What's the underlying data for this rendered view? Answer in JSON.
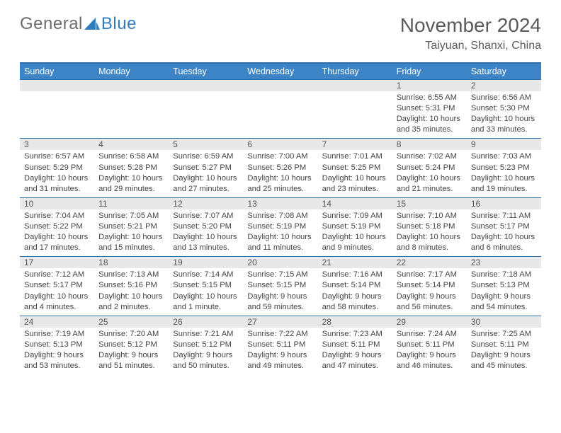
{
  "logo": {
    "text1": "General",
    "text2": "Blue"
  },
  "title": "November 2024",
  "location": "Taiyuan, Shanxi, China",
  "header_bg": "#3d84c6",
  "header_border": "#2f6ea8",
  "numbar_bg": "#e8e8e8",
  "text_color": "#444444",
  "font_size_header": 12.5,
  "font_size_cell": 11.2,
  "weekdays": [
    "Sunday",
    "Monday",
    "Tuesday",
    "Wednesday",
    "Thursday",
    "Friday",
    "Saturday"
  ],
  "weeks": [
    [
      null,
      null,
      null,
      null,
      null,
      {
        "n": "1",
        "sunrise": "Sunrise: 6:55 AM",
        "sunset": "Sunset: 5:31 PM",
        "daylight": "Daylight: 10 hours and 35 minutes."
      },
      {
        "n": "2",
        "sunrise": "Sunrise: 6:56 AM",
        "sunset": "Sunset: 5:30 PM",
        "daylight": "Daylight: 10 hours and 33 minutes."
      }
    ],
    [
      {
        "n": "3",
        "sunrise": "Sunrise: 6:57 AM",
        "sunset": "Sunset: 5:29 PM",
        "daylight": "Daylight: 10 hours and 31 minutes."
      },
      {
        "n": "4",
        "sunrise": "Sunrise: 6:58 AM",
        "sunset": "Sunset: 5:28 PM",
        "daylight": "Daylight: 10 hours and 29 minutes."
      },
      {
        "n": "5",
        "sunrise": "Sunrise: 6:59 AM",
        "sunset": "Sunset: 5:27 PM",
        "daylight": "Daylight: 10 hours and 27 minutes."
      },
      {
        "n": "6",
        "sunrise": "Sunrise: 7:00 AM",
        "sunset": "Sunset: 5:26 PM",
        "daylight": "Daylight: 10 hours and 25 minutes."
      },
      {
        "n": "7",
        "sunrise": "Sunrise: 7:01 AM",
        "sunset": "Sunset: 5:25 PM",
        "daylight": "Daylight: 10 hours and 23 minutes."
      },
      {
        "n": "8",
        "sunrise": "Sunrise: 7:02 AM",
        "sunset": "Sunset: 5:24 PM",
        "daylight": "Daylight: 10 hours and 21 minutes."
      },
      {
        "n": "9",
        "sunrise": "Sunrise: 7:03 AM",
        "sunset": "Sunset: 5:23 PM",
        "daylight": "Daylight: 10 hours and 19 minutes."
      }
    ],
    [
      {
        "n": "10",
        "sunrise": "Sunrise: 7:04 AM",
        "sunset": "Sunset: 5:22 PM",
        "daylight": "Daylight: 10 hours and 17 minutes."
      },
      {
        "n": "11",
        "sunrise": "Sunrise: 7:05 AM",
        "sunset": "Sunset: 5:21 PM",
        "daylight": "Daylight: 10 hours and 15 minutes."
      },
      {
        "n": "12",
        "sunrise": "Sunrise: 7:07 AM",
        "sunset": "Sunset: 5:20 PM",
        "daylight": "Daylight: 10 hours and 13 minutes."
      },
      {
        "n": "13",
        "sunrise": "Sunrise: 7:08 AM",
        "sunset": "Sunset: 5:19 PM",
        "daylight": "Daylight: 10 hours and 11 minutes."
      },
      {
        "n": "14",
        "sunrise": "Sunrise: 7:09 AM",
        "sunset": "Sunset: 5:19 PM",
        "daylight": "Daylight: 10 hours and 9 minutes."
      },
      {
        "n": "15",
        "sunrise": "Sunrise: 7:10 AM",
        "sunset": "Sunset: 5:18 PM",
        "daylight": "Daylight: 10 hours and 8 minutes."
      },
      {
        "n": "16",
        "sunrise": "Sunrise: 7:11 AM",
        "sunset": "Sunset: 5:17 PM",
        "daylight": "Daylight: 10 hours and 6 minutes."
      }
    ],
    [
      {
        "n": "17",
        "sunrise": "Sunrise: 7:12 AM",
        "sunset": "Sunset: 5:17 PM",
        "daylight": "Daylight: 10 hours and 4 minutes."
      },
      {
        "n": "18",
        "sunrise": "Sunrise: 7:13 AM",
        "sunset": "Sunset: 5:16 PM",
        "daylight": "Daylight: 10 hours and 2 minutes."
      },
      {
        "n": "19",
        "sunrise": "Sunrise: 7:14 AM",
        "sunset": "Sunset: 5:15 PM",
        "daylight": "Daylight: 10 hours and 1 minute."
      },
      {
        "n": "20",
        "sunrise": "Sunrise: 7:15 AM",
        "sunset": "Sunset: 5:15 PM",
        "daylight": "Daylight: 9 hours and 59 minutes."
      },
      {
        "n": "21",
        "sunrise": "Sunrise: 7:16 AM",
        "sunset": "Sunset: 5:14 PM",
        "daylight": "Daylight: 9 hours and 58 minutes."
      },
      {
        "n": "22",
        "sunrise": "Sunrise: 7:17 AM",
        "sunset": "Sunset: 5:14 PM",
        "daylight": "Daylight: 9 hours and 56 minutes."
      },
      {
        "n": "23",
        "sunrise": "Sunrise: 7:18 AM",
        "sunset": "Sunset: 5:13 PM",
        "daylight": "Daylight: 9 hours and 54 minutes."
      }
    ],
    [
      {
        "n": "24",
        "sunrise": "Sunrise: 7:19 AM",
        "sunset": "Sunset: 5:13 PM",
        "daylight": "Daylight: 9 hours and 53 minutes."
      },
      {
        "n": "25",
        "sunrise": "Sunrise: 7:20 AM",
        "sunset": "Sunset: 5:12 PM",
        "daylight": "Daylight: 9 hours and 51 minutes."
      },
      {
        "n": "26",
        "sunrise": "Sunrise: 7:21 AM",
        "sunset": "Sunset: 5:12 PM",
        "daylight": "Daylight: 9 hours and 50 minutes."
      },
      {
        "n": "27",
        "sunrise": "Sunrise: 7:22 AM",
        "sunset": "Sunset: 5:11 PM",
        "daylight": "Daylight: 9 hours and 49 minutes."
      },
      {
        "n": "28",
        "sunrise": "Sunrise: 7:23 AM",
        "sunset": "Sunset: 5:11 PM",
        "daylight": "Daylight: 9 hours and 47 minutes."
      },
      {
        "n": "29",
        "sunrise": "Sunrise: 7:24 AM",
        "sunset": "Sunset: 5:11 PM",
        "daylight": "Daylight: 9 hours and 46 minutes."
      },
      {
        "n": "30",
        "sunrise": "Sunrise: 7:25 AM",
        "sunset": "Sunset: 5:11 PM",
        "daylight": "Daylight: 9 hours and 45 minutes."
      }
    ]
  ]
}
